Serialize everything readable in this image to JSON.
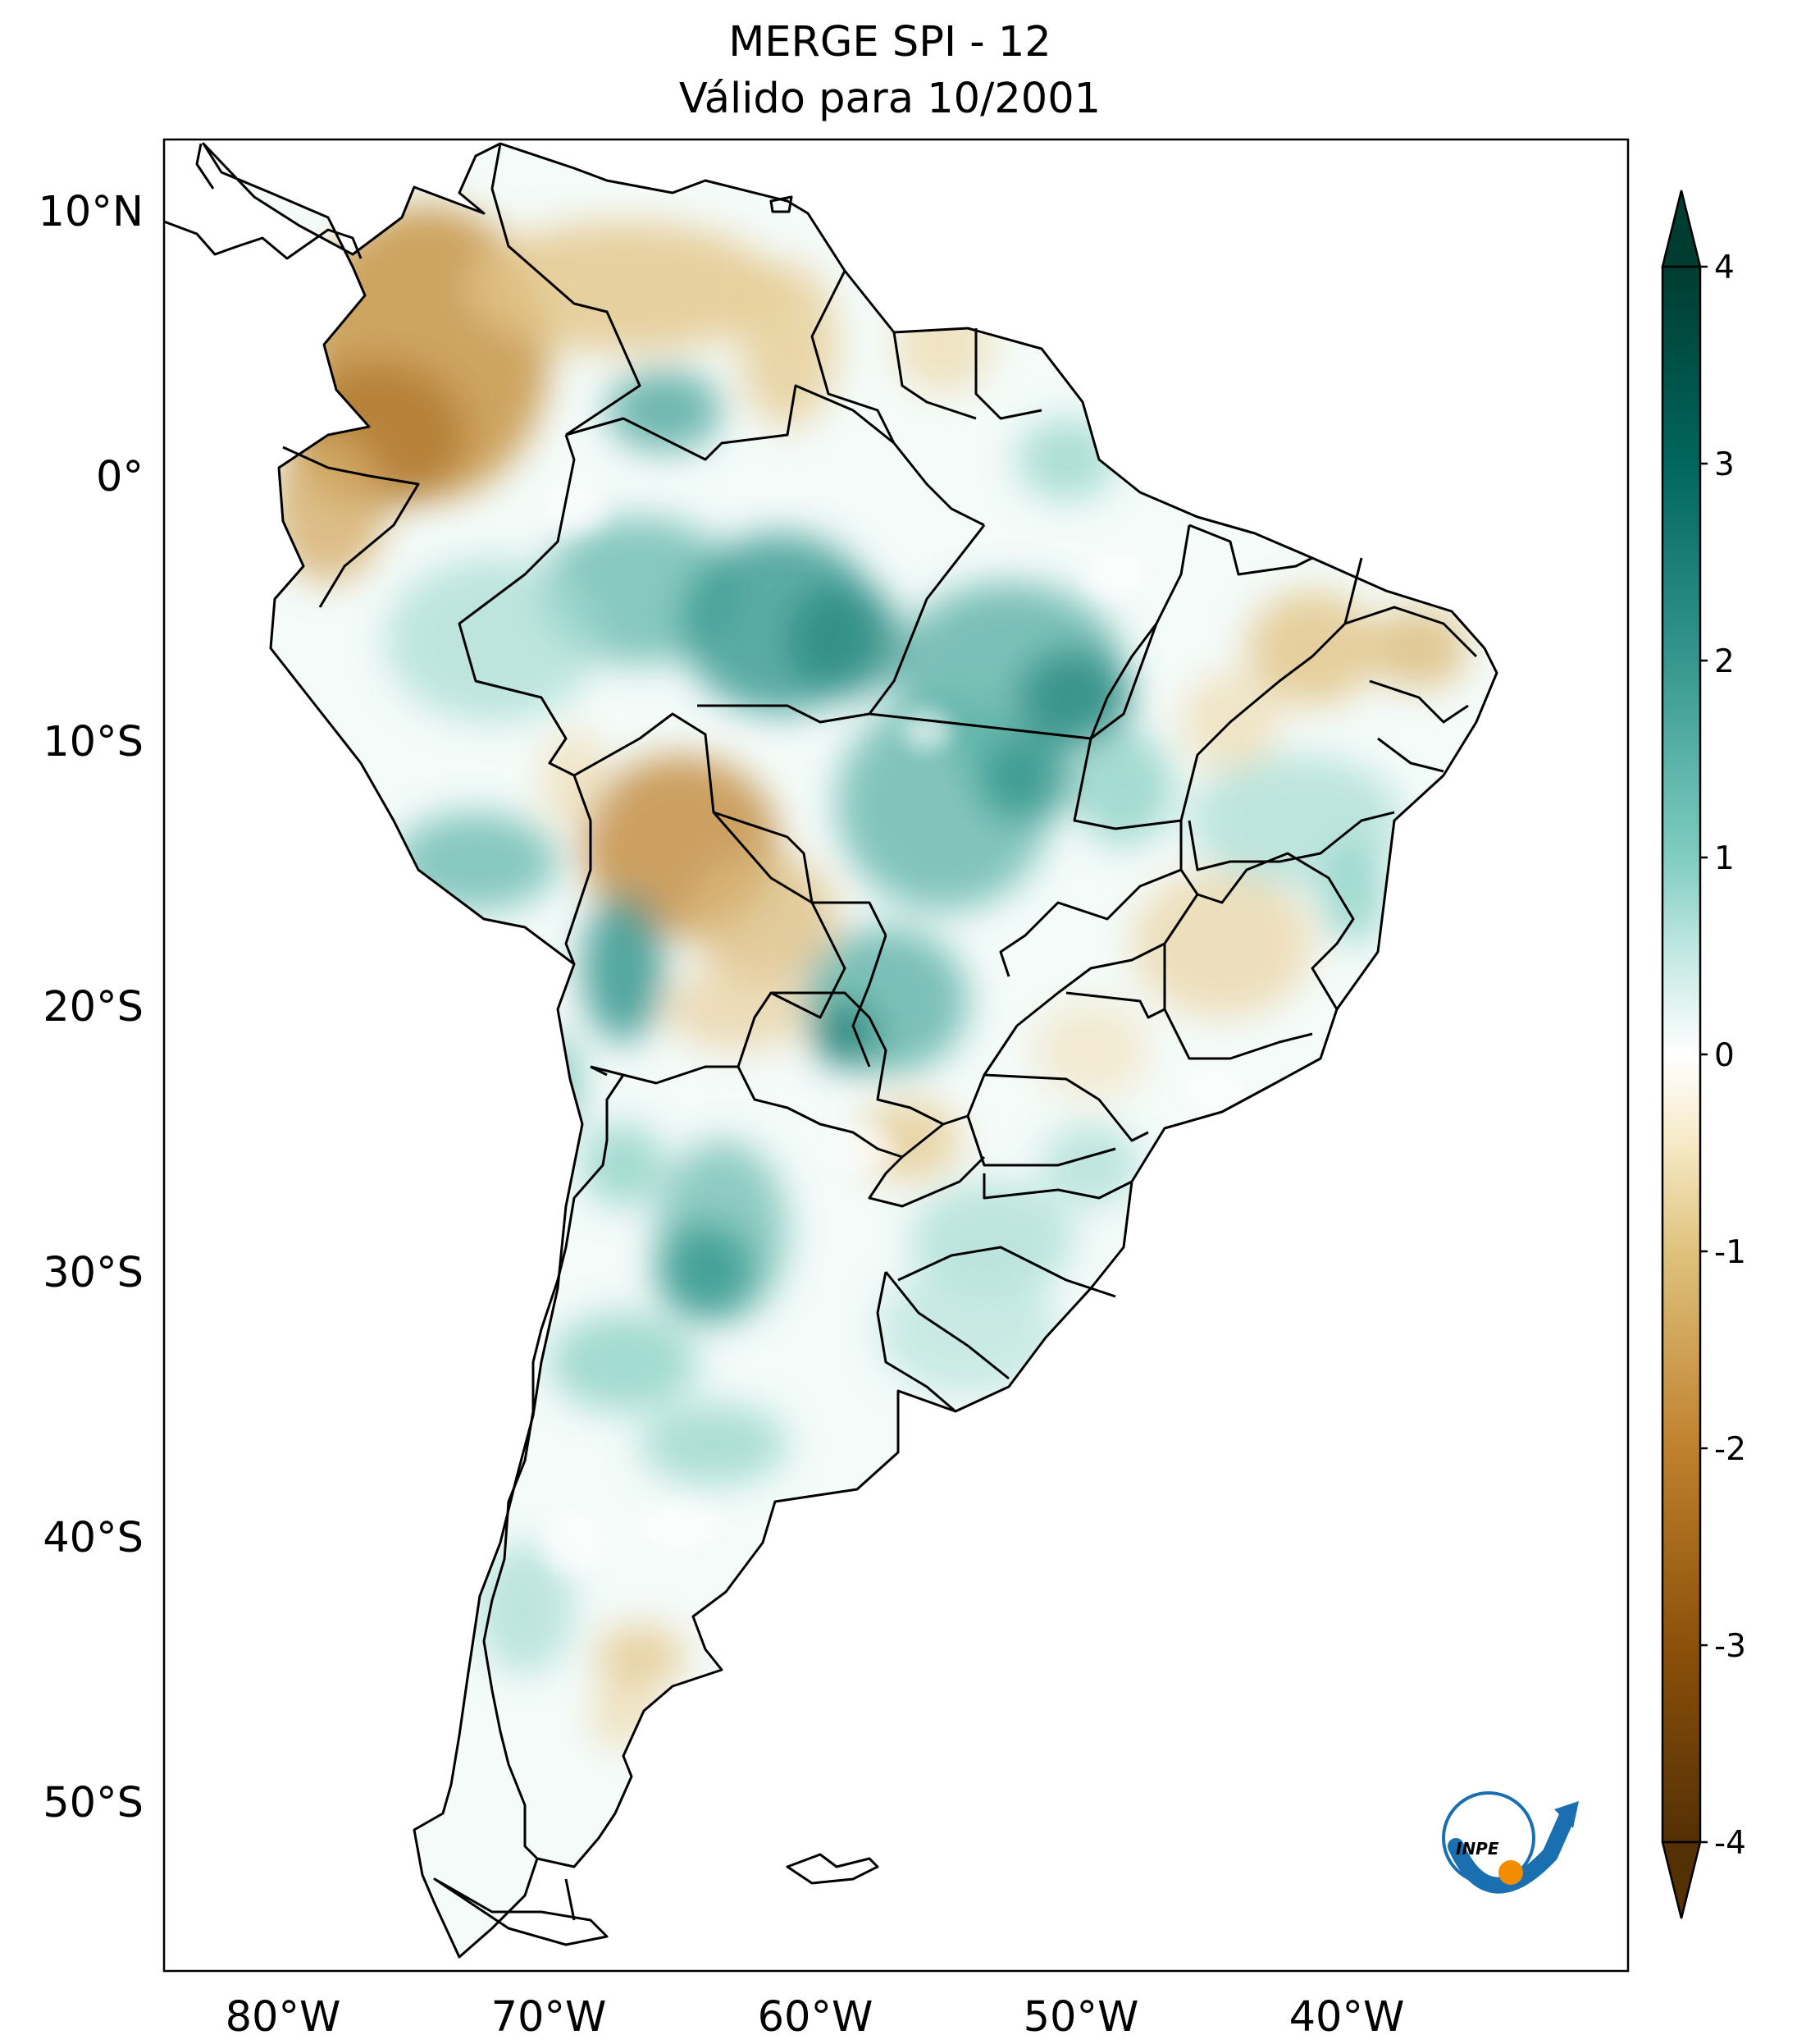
{
  "title": {
    "line1": "MERGE   SPI - 12",
    "line2": "Válido para 10/2001"
  },
  "map": {
    "projection": "PlateCarree",
    "extent_lon": [
      -85,
      -30
    ],
    "extent_lat": [
      -56,
      13
    ],
    "variable": "SPI - 12",
    "regions": {
      "dry": [
        "Colombia",
        "northern Venezuela",
        "Ecuador",
        "northern Bolivia",
        "northeastern Brazil",
        "southeastern Brazil interior",
        "Patagonia (southern Argentina)"
      ],
      "wet": [
        "western Amazon",
        "central Brazil",
        "Pará",
        "southern Peru",
        "northern Chile/Argentina",
        "central Argentina",
        "Uruguay"
      ]
    }
  },
  "axes": {
    "lon_ticks": [
      "80°W",
      "70°W",
      "60°W",
      "50°W",
      "40°W"
    ],
    "lat_ticks": [
      "10°N",
      "0°",
      "10°S",
      "20°S",
      "30°S",
      "40°S",
      "50°S"
    ]
  },
  "colorbar": {
    "ticks": [
      "4",
      "3",
      "2",
      "1",
      "0",
      "-1",
      "-2",
      "-3",
      "-4"
    ],
    "range": [
      -4,
      4
    ],
    "extend": "both",
    "colormap": "BrBG",
    "colors": {
      "min": "#543005",
      "neg3": "#8c510a",
      "neg2": "#bf812d",
      "neg1": "#dfc27d",
      "neg05": "#f6e8c3",
      "zero": "#ffffff",
      "pos05": "#c7eae5",
      "pos1": "#80cdc1",
      "pos2": "#35978f",
      "pos3": "#01665e",
      "max": "#003c30"
    }
  },
  "logo": {
    "text": "INPE",
    "name": "inpe-logo"
  }
}
